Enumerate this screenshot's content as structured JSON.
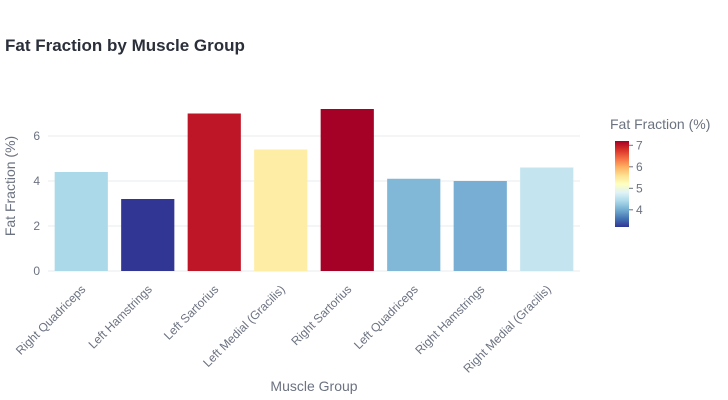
{
  "chart_data": {
    "type": "bar",
    "title": "Fat Fraction by Muscle Group",
    "xlabel": "Muscle Group",
    "ylabel": "Fat Fraction (%)",
    "categories": [
      "Right Quadriceps",
      "Left Hamstrings",
      "Left Sartorius",
      "Left Medial (Gracilis)",
      "Right Sartorius",
      "Left Quadriceps",
      "Right Hamstrings",
      "Right Medial (Gracilis)"
    ],
    "values": [
      4.4,
      3.2,
      7.0,
      5.4,
      7.2,
      4.1,
      4.0,
      4.6
    ],
    "bar_colors": [
      "#abd9e9",
      "#313695",
      "#be1626",
      "#feeea5",
      "#a50026",
      "#81b7d7",
      "#78aed3",
      "#c4e5f0"
    ],
    "ylim": [
      0,
      8
    ],
    "yticks": [
      0,
      2,
      4,
      6
    ],
    "grid": true,
    "colorbar": {
      "title": "Fat Fraction (%)",
      "min": 3.2,
      "max": 7.2,
      "ticks": [
        4,
        5,
        6,
        7
      ],
      "colorscale": [
        "#313695",
        "#4575b4",
        "#74add1",
        "#abd9e9",
        "#e0f3f8",
        "#ffffbf",
        "#fee090",
        "#fdae61",
        "#f46d43",
        "#d73027",
        "#a50026"
      ],
      "placement": "right"
    }
  }
}
